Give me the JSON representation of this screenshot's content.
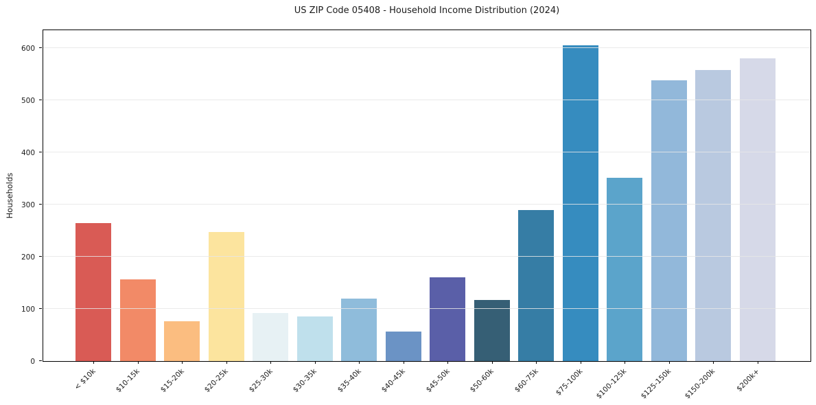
{
  "chart_data": {
    "type": "bar",
    "title": "US ZIP Code 05408 - Household Income Distribution (2024)",
    "xlabel": "",
    "ylabel": "Households",
    "categories": [
      "< $10k",
      "$10-15k",
      "$15-20k",
      "$20-25k",
      "$25-30k",
      "$30-35k",
      "$35-40k",
      "$40-45k",
      "$45-50k",
      "$50-60k",
      "$60-75k",
      "$75-100k",
      "$100-125k",
      "$125-150k",
      "$150-200k",
      "$200k+"
    ],
    "values": [
      264,
      156,
      77,
      248,
      92,
      85,
      120,
      57,
      161,
      117,
      289,
      605,
      352,
      538,
      558,
      581
    ],
    "bar_colors": [
      "#d95b55",
      "#f28a67",
      "#fbbd80",
      "#fce49e",
      "#e7f1f4",
      "#bfe0ec",
      "#8fbcdb",
      "#6b93c5",
      "#5a5fa8",
      "#365f75",
      "#367da5",
      "#368cbf",
      "#5ba4cb",
      "#92b8da",
      "#b9c9e0",
      "#d6d9e8"
    ],
    "ylim": [
      0,
      637
    ],
    "y_ticks": [
      0,
      100,
      200,
      300,
      400,
      500,
      600
    ],
    "grid": "horizontal",
    "legend": "none",
    "axis_frame_color": "#000000",
    "gridline_color": "#e6e6e6"
  }
}
